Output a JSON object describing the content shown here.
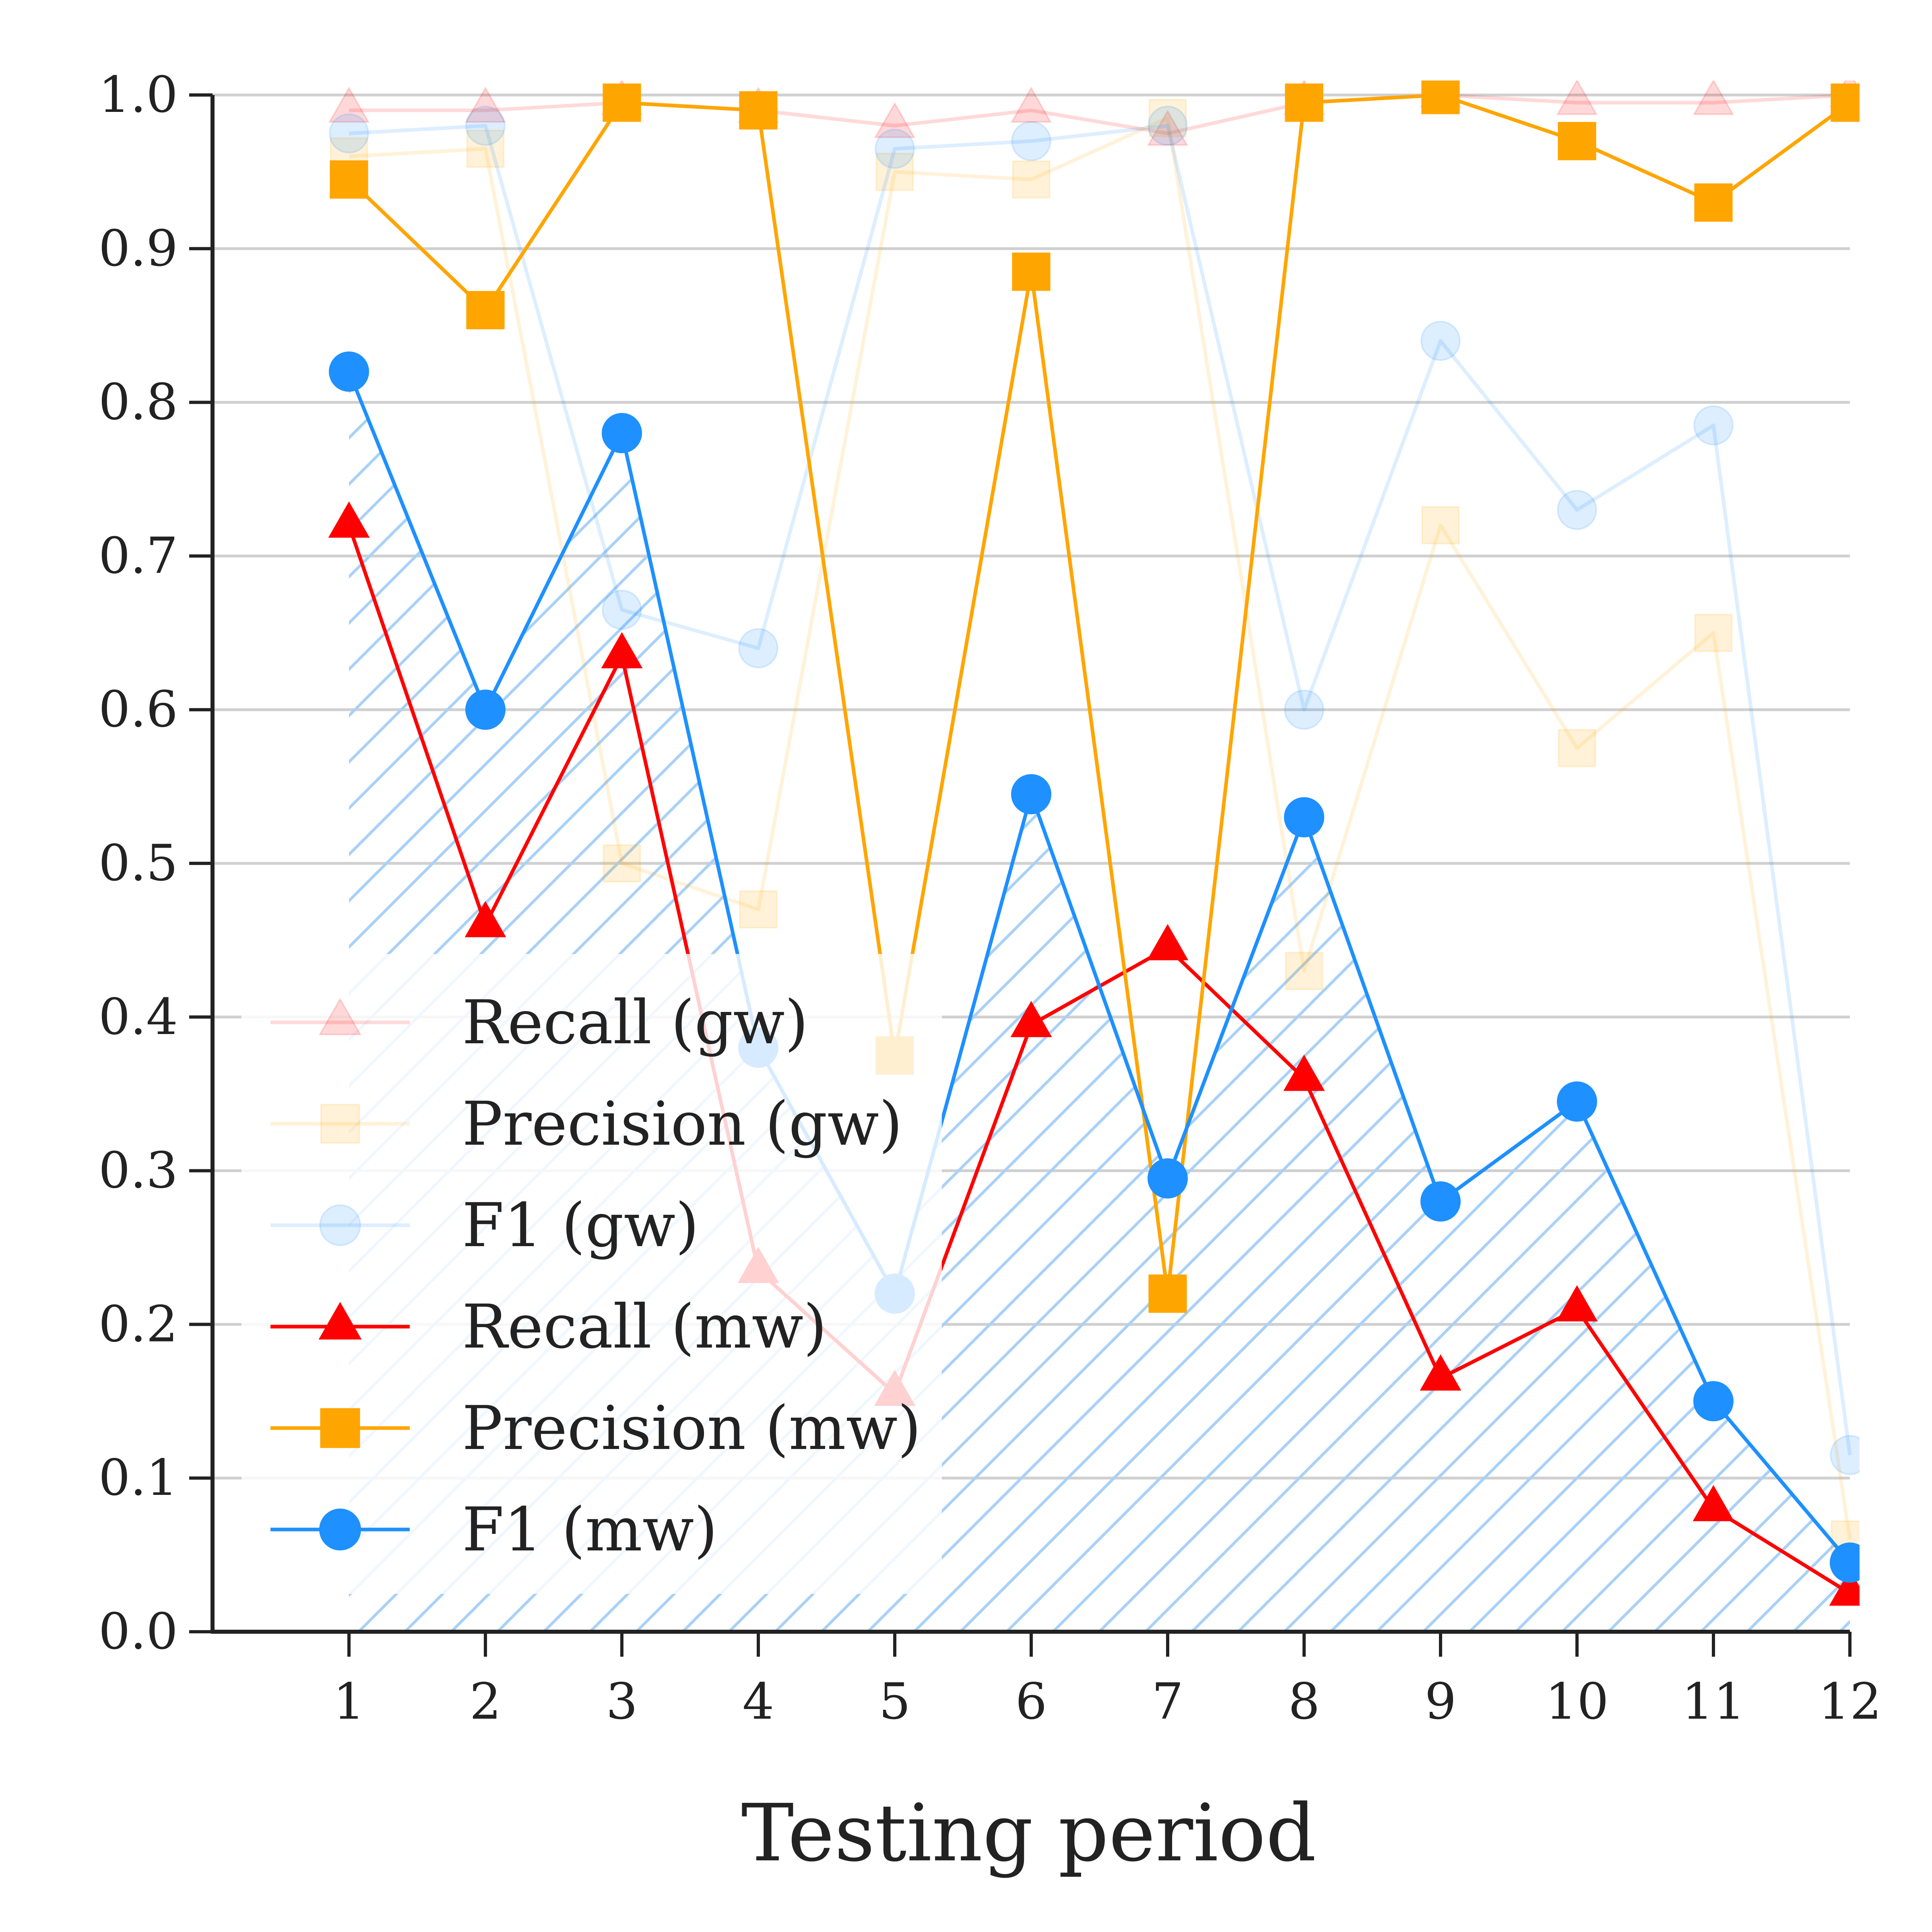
{
  "chart_data": {
    "type": "line",
    "xlabel": "Testing period",
    "ylabel": "",
    "x": [
      1,
      2,
      3,
      4,
      5,
      6,
      7,
      8,
      9,
      10,
      11,
      12
    ],
    "xlim": [
      0,
      12
    ],
    "ylim": [
      0,
      1
    ],
    "yticks": [
      "0.0",
      "0.1",
      "0.2",
      "0.3",
      "0.4",
      "0.5",
      "0.6",
      "0.7",
      "0.8",
      "0.9",
      "1.0"
    ],
    "xticks": [
      "1",
      "2",
      "3",
      "4",
      "5",
      "6",
      "7",
      "8",
      "9",
      "10",
      "11",
      "12"
    ],
    "grid": "horizontal",
    "legend_position": "lower-left",
    "fill_under_series": "F1 (mw)",
    "fill_pattern": "diagonal-hatch",
    "series": [
      {
        "name": "Recall (gw)",
        "color": "#ff0000",
        "marker": "triangle",
        "faded": true,
        "values": [
          0.99,
          0.99,
          0.995,
          0.99,
          0.98,
          0.99,
          0.975,
          0.995,
          1.0,
          0.995,
          0.995,
          1.0
        ]
      },
      {
        "name": "Precision (gw)",
        "color": "#ffa500",
        "marker": "square",
        "faded": true,
        "values": [
          0.96,
          0.965,
          0.5,
          0.47,
          0.95,
          0.945,
          0.985,
          0.43,
          0.72,
          0.575,
          0.65,
          0.06
        ]
      },
      {
        "name": "F1 (gw)",
        "color": "#1e90ff",
        "marker": "circle",
        "faded": true,
        "values": [
          0.975,
          0.98,
          0.665,
          0.64,
          0.965,
          0.97,
          0.98,
          0.6,
          0.84,
          0.73,
          0.785,
          0.115
        ]
      },
      {
        "name": "Recall (mw)",
        "color": "#ff0000",
        "marker": "triangle",
        "faded": false,
        "values": [
          0.72,
          0.46,
          0.635,
          0.235,
          0.155,
          0.395,
          0.445,
          0.36,
          0.165,
          0.21,
          0.08,
          0.025
        ]
      },
      {
        "name": "Precision (mw)",
        "color": "#ffa500",
        "marker": "square",
        "faded": false,
        "values": [
          0.945,
          0.86,
          0.995,
          0.99,
          0.375,
          0.885,
          0.22,
          0.995,
          1.0,
          0.97,
          0.93,
          0.995
        ]
      },
      {
        "name": "F1 (mw)",
        "color": "#1e90ff",
        "marker": "circle",
        "faded": false,
        "values": [
          0.82,
          0.6,
          0.78,
          0.38,
          0.22,
          0.545,
          0.295,
          0.53,
          0.28,
          0.345,
          0.15,
          0.045
        ]
      }
    ]
  }
}
